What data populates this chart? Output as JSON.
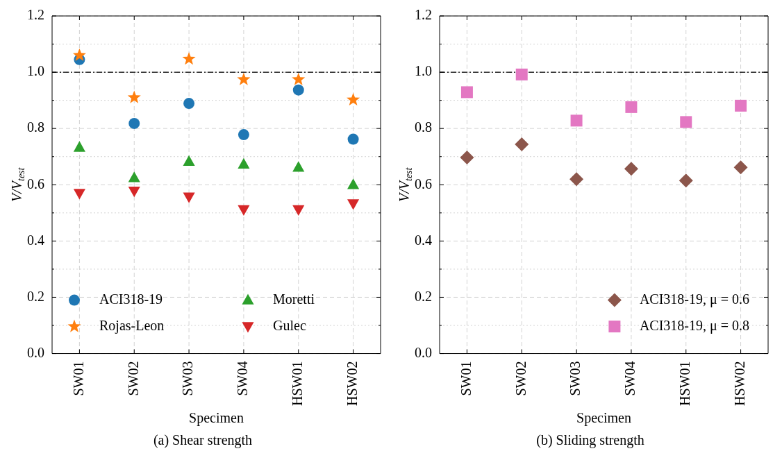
{
  "chart_data": [
    {
      "type": "scatter",
      "title": "(a) Shear strength",
      "xlabel": "Specimen",
      "ylabel": "V/V$_{test}$",
      "categories": [
        "SW01",
        "SW02",
        "SW03",
        "SW04",
        "HSW01",
        "HSW02"
      ],
      "series": [
        {
          "name": "ACI318-19",
          "color": "#1f77b4",
          "marker": "circle",
          "values": [
            1.045,
            0.818,
            0.889,
            0.778,
            0.937,
            0.762
          ]
        },
        {
          "name": "Rojas-Leon",
          "color": "#ff7f0e",
          "marker": "star",
          "values": [
            1.06,
            0.91,
            1.047,
            0.974,
            0.974,
            0.902
          ]
        },
        {
          "name": "Moretti",
          "color": "#2ca02c",
          "marker": "triangle",
          "values": [
            0.733,
            0.625,
            0.683,
            0.673,
            0.662,
            0.6
          ]
        },
        {
          "name": "Gulec",
          "color": "#d62728",
          "marker": "triangle_down",
          "values": [
            0.57,
            0.578,
            0.557,
            0.512,
            0.512,
            0.533
          ]
        }
      ],
      "ylim": [
        0,
        1.2
      ],
      "yticks": [
        {
          "value": 0,
          "label": "0.0"
        },
        {
          "value": 0.1,
          "label": null
        },
        0.2,
        {
          "value": 0.3,
          "label": null
        },
        0.4,
        {
          "value": 0.5,
          "label": null
        },
        0.6,
        {
          "value": 0.7,
          "label": null
        },
        0.8,
        {
          "value": 0.9,
          "label": null
        },
        {
          "value": 1,
          "label": "1.0"
        },
        {
          "value": 1.1,
          "label": null
        },
        1.2
      ],
      "ref_lines": [
        {
          "axis": "y",
          "value": 1,
          "color": "#000000",
          "line_style": "dashdot"
        }
      ],
      "grid": true,
      "legend": "bottom left"
    },
    {
      "type": "scatter",
      "title": "(b) Sliding strength",
      "xlabel": "Specimen",
      "ylabel": "V/V$_{test}$",
      "categories": [
        "SW01",
        "SW02",
        "SW03",
        "SW04",
        "HSW01",
        "HSW02"
      ],
      "series": [
        {
          "name": "ACI318-19, μ = 0.6",
          "color": "#8c564b",
          "marker": "diamond",
          "values": [
            0.697,
            0.744,
            0.62,
            0.657,
            0.615,
            0.662
          ]
        },
        {
          "name": "ACI318-19, μ = 0.8",
          "color": "#e377c2",
          "marker": "square",
          "values": [
            0.929,
            0.992,
            0.828,
            0.876,
            0.823,
            0.881
          ]
        }
      ],
      "ylim": [
        0,
        1.2
      ],
      "yticks": [
        {
          "value": 0,
          "label": "0.0"
        },
        {
          "value": 0.1,
          "label": null
        },
        0.2,
        {
          "value": 0.3,
          "label": null
        },
        0.4,
        {
          "value": 0.5,
          "label": null
        },
        0.6,
        {
          "value": 0.7,
          "label": null
        },
        0.8,
        {
          "value": 0.9,
          "label": null
        },
        {
          "value": 1,
          "label": "1.0"
        },
        {
          "value": 1.1,
          "label": null
        },
        1.2
      ],
      "ref_lines": [
        {
          "axis": "y",
          "value": 1,
          "color": "#000000",
          "line_style": "dashdot"
        }
      ],
      "grid": true,
      "legend": "bottom right"
    }
  ]
}
